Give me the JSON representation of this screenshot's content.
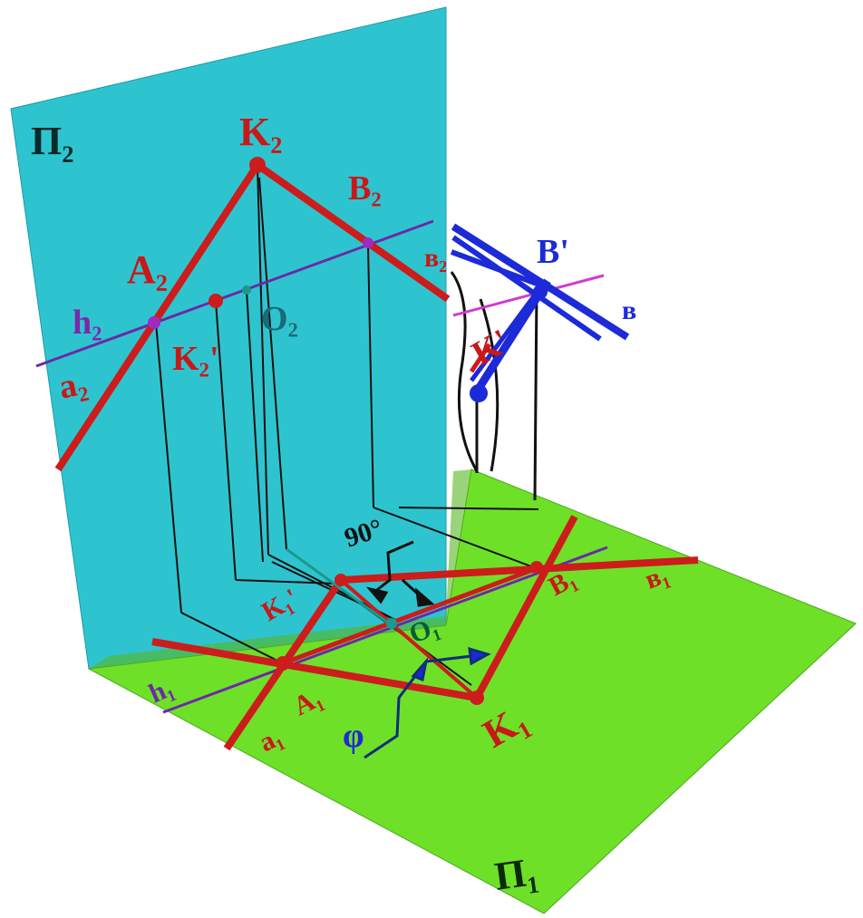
{
  "colors": {
    "frontal_plane": "#2ec4cf",
    "horizontal_plane": "#6fe028",
    "red_line": "#cc1c1c",
    "horizontal_line": "#6a2aa8",
    "blue_line": "#1c2ad8",
    "magenta_line": "#d23ad2",
    "connector": "#111111",
    "teal_point": "#1a9a8c"
  },
  "labels": {
    "plane_p2": "П₂",
    "plane_p1": "П₁",
    "k2": "K₂",
    "b2": "B₂",
    "a2": "A₂",
    "h2": "h₂",
    "k2_prime": "K₂'",
    "o2": "O₂",
    "a2_line": "a₂",
    "b2_line": "в₂",
    "b_prime": "B'",
    "k_prime": "K'",
    "b_line": "в",
    "angle_90": "90°",
    "k1_prime": "K₁'",
    "o1": "O₁",
    "b1": "B₁",
    "b1_line": "в₁",
    "h1": "h₁",
    "a1_line": "a₁",
    "a1": "A₁",
    "k1": "K₁",
    "phi": "φ"
  }
}
